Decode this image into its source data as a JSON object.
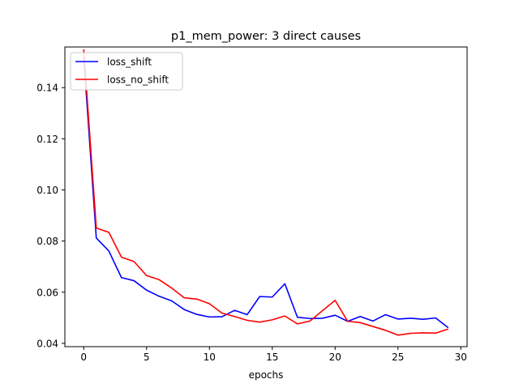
{
  "chart_data": {
    "type": "line",
    "title": "p1_mem_power: 3 direct causes",
    "xlabel": "epochs",
    "ylabel": "",
    "xlim": [
      -1.5,
      30.5
    ],
    "ylim": [
      0.0387,
      0.1559
    ],
    "xticks": [
      0,
      5,
      10,
      15,
      20,
      25,
      30
    ],
    "yticks": [
      0.04,
      0.06,
      0.08,
      0.1,
      0.12,
      0.14
    ],
    "ytick_labels": [
      "0.04",
      "0.06",
      "0.08",
      "0.10",
      "0.12",
      "0.14"
    ],
    "grid": false,
    "legend_position": "upper-left",
    "x": [
      0,
      1,
      2,
      3,
      4,
      5,
      6,
      7,
      8,
      9,
      10,
      11,
      12,
      13,
      14,
      15,
      16,
      17,
      18,
      19,
      20,
      21,
      22,
      23,
      24,
      25,
      26,
      27,
      28,
      29
    ],
    "series": [
      {
        "name": "loss_shift",
        "color": "#0000ff",
        "values": [
          0.152,
          0.0812,
          0.0761,
          0.0657,
          0.0645,
          0.0608,
          0.0584,
          0.0566,
          0.0532,
          0.0513,
          0.0503,
          0.0504,
          0.0529,
          0.0512,
          0.0583,
          0.0581,
          0.0633,
          0.0502,
          0.0497,
          0.0498,
          0.051,
          0.0486,
          0.0505,
          0.0487,
          0.0512,
          0.0495,
          0.0498,
          0.0494,
          0.0499,
          0.0461
        ]
      },
      {
        "name": "loss_no_shift",
        "color": "#ff0000",
        "values": [
          0.155,
          0.0851,
          0.0834,
          0.0737,
          0.072,
          0.0665,
          0.0649,
          0.0616,
          0.0578,
          0.0573,
          0.0555,
          0.0518,
          0.0505,
          0.049,
          0.0483,
          0.0492,
          0.0507,
          0.0476,
          0.0487,
          0.0528,
          0.0568,
          0.0486,
          0.0481,
          0.0466,
          0.0451,
          0.0432,
          0.0439,
          0.0441,
          0.044,
          0.0456
        ]
      }
    ]
  }
}
